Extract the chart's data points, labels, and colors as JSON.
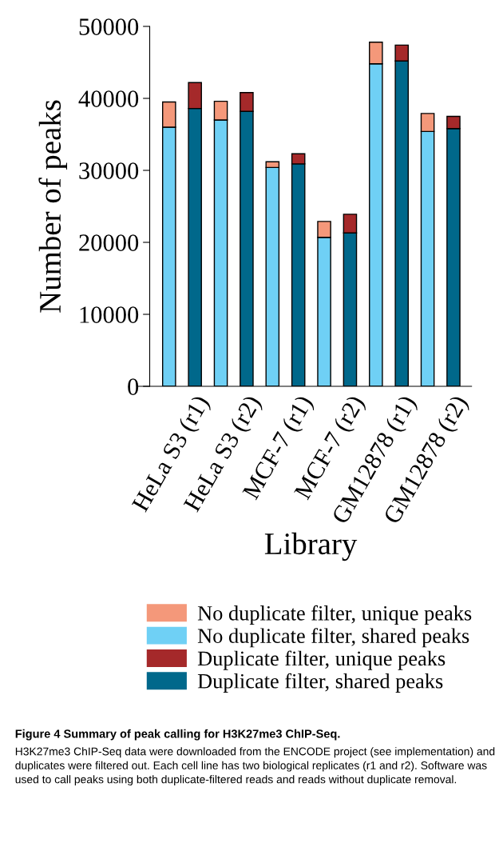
{
  "chart_data": {
    "type": "bar",
    "stacked": true,
    "title": "Figure 4 Summary of peak calling for H3K27me3 ChIP-Seq.",
    "annotations": [
      "H3K27me3 ChIP-Seq data were downloaded from the ENCODE project (see implementation) and duplicates were filtered out. Each cell line has two biological replicates (r1 and r2). Software was used to call peaks using both duplicate-filtered reads and reads without duplicate removal."
    ],
    "xlabel": "Library",
    "ylabel": "Number of peaks",
    "categories": [
      null,
      "HeLa S3 (r1)",
      null,
      "HeLa S3 (r2)",
      null,
      "MCF-7 (r1)",
      null,
      "MCF-7 (r2)",
      null,
      "GM12878 (r1)",
      null,
      "GM12878 (r2)"
    ],
    "series": [
      {
        "name": "No duplicate filter, shared peaks",
        "color": "#6fd0f5",
        "values": [
          36000,
          null,
          37000,
          null,
          30400,
          null,
          20700,
          null,
          44800,
          null,
          35400,
          null
        ]
      },
      {
        "name": "No duplicate filter, unique peaks",
        "color": "#f4987a",
        "values": [
          3500,
          null,
          2600,
          null,
          800,
          null,
          2200,
          null,
          3000,
          null,
          2500,
          null
        ]
      },
      {
        "name": "Duplicate filter, shared peaks",
        "color": "#00688b",
        "values": [
          null,
          38600,
          null,
          38200,
          null,
          30900,
          null,
          21300,
          null,
          45200,
          null,
          35800
        ]
      },
      {
        "name": "Duplicate filter, unique peaks",
        "color": "#a5292a",
        "values": [
          null,
          3600,
          null,
          2600,
          null,
          1400,
          null,
          2600,
          null,
          2200,
          null,
          1700
        ]
      }
    ],
    "ylim": [
      0,
      50000
    ],
    "yticks": [
      0,
      10000,
      20000,
      30000,
      40000,
      50000
    ],
    "legend": "bottom"
  }
}
